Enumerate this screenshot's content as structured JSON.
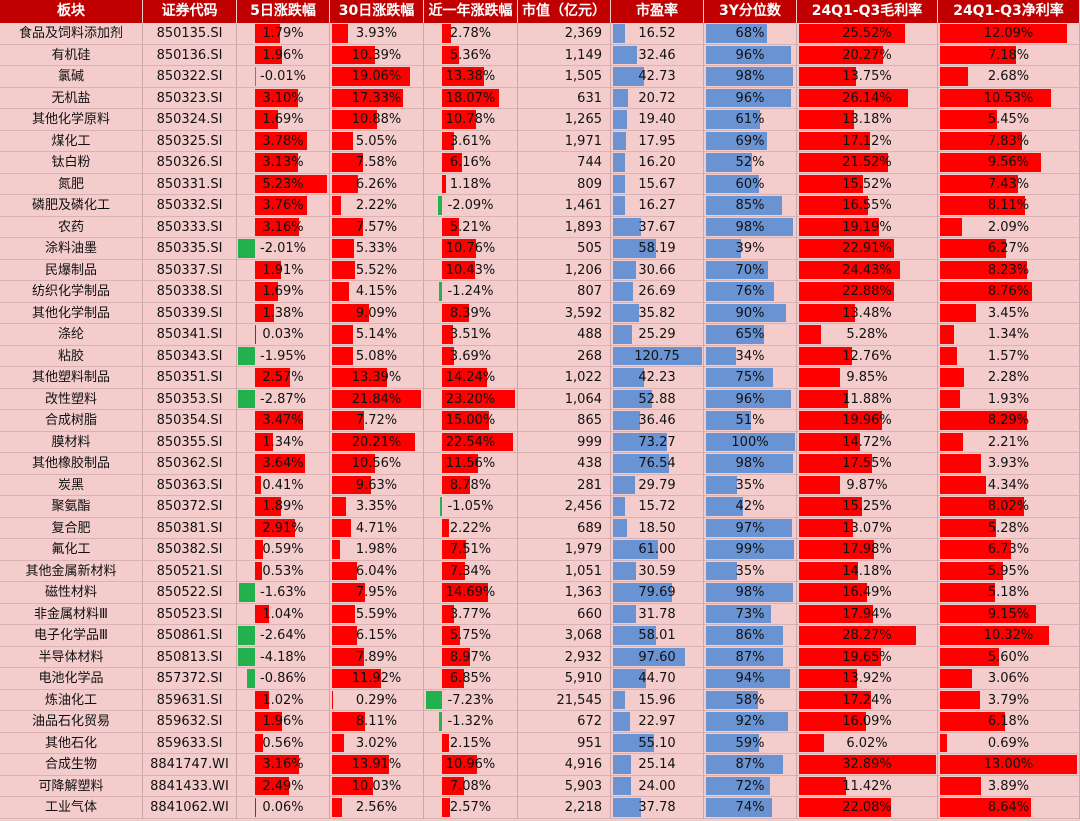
{
  "headers": [
    "板块",
    "证券代码",
    "5日涨跌幅",
    "30日涨跌幅",
    "近一年涨跌幅",
    "市值（亿元）",
    "市盈率",
    "3Y分位数",
    "24Q1-Q3毛利率",
    "24Q1-Q3净利率"
  ],
  "rows": [
    [
      "食品及饲料添加剂",
      "850135.SI",
      "1.79%",
      "3.93%",
      "2.78%",
      "2,369",
      "16.52",
      "68%",
      "25.52%",
      "12.09%"
    ],
    [
      "有机硅",
      "850136.SI",
      "1.96%",
      "10.39%",
      "5.36%",
      "1,149",
      "32.46",
      "96%",
      "20.27%",
      "7.18%"
    ],
    [
      "氯碱",
      "850322.SI",
      "-0.01%",
      "19.06%",
      "13.38%",
      "1,505",
      "42.73",
      "98%",
      "13.75%",
      "2.68%"
    ],
    [
      "无机盐",
      "850323.SI",
      "3.10%",
      "17.33%",
      "18.07%",
      "631",
      "20.72",
      "96%",
      "26.14%",
      "10.53%"
    ],
    [
      "其他化学原料",
      "850324.SI",
      "1.69%",
      "10.88%",
      "10.78%",
      "1,265",
      "19.40",
      "61%",
      "13.18%",
      "5.45%"
    ],
    [
      "煤化工",
      "850325.SI",
      "3.78%",
      "5.05%",
      "3.61%",
      "1,971",
      "17.95",
      "69%",
      "17.12%",
      "7.83%"
    ],
    [
      "钛白粉",
      "850326.SI",
      "3.13%",
      "7.58%",
      "6.16%",
      "744",
      "16.20",
      "52%",
      "21.52%",
      "9.56%"
    ],
    [
      "氮肥",
      "850331.SI",
      "5.23%",
      "6.26%",
      "1.18%",
      "809",
      "15.67",
      "60%",
      "15.52%",
      "7.43%"
    ],
    [
      "磷肥及磷化工",
      "850332.SI",
      "3.76%",
      "2.22%",
      "-2.09%",
      "1,461",
      "16.27",
      "85%",
      "16.55%",
      "8.11%"
    ],
    [
      "农药",
      "850333.SI",
      "3.16%",
      "7.57%",
      "5.21%",
      "1,893",
      "37.67",
      "98%",
      "19.19%",
      "2.09%"
    ],
    [
      "涂料油墨",
      "850335.SI",
      "-2.01%",
      "5.33%",
      "10.76%",
      "505",
      "58.19",
      "39%",
      "22.91%",
      "6.27%"
    ],
    [
      "民爆制品",
      "850337.SI",
      "1.91%",
      "5.52%",
      "10.43%",
      "1,206",
      "30.66",
      "70%",
      "24.43%",
      "8.23%"
    ],
    [
      "纺织化学制品",
      "850338.SI",
      "1.69%",
      "4.15%",
      "-1.24%",
      "807",
      "26.69",
      "76%",
      "22.88%",
      "8.76%"
    ],
    [
      "其他化学制品",
      "850339.SI",
      "1.38%",
      "9.09%",
      "8.39%",
      "3,592",
      "35.82",
      "90%",
      "13.48%",
      "3.45%"
    ],
    [
      "涤纶",
      "850341.SI",
      "0.03%",
      "5.14%",
      "3.51%",
      "488",
      "25.29",
      "65%",
      "5.28%",
      "1.34%"
    ],
    [
      "粘胶",
      "850343.SI",
      "-1.95%",
      "5.08%",
      "3.69%",
      "268",
      "120.75",
      "34%",
      "12.76%",
      "1.57%"
    ],
    [
      "其他塑料制品",
      "850351.SI",
      "2.57%",
      "13.39%",
      "14.24%",
      "1,022",
      "42.23",
      "75%",
      "9.85%",
      "2.28%"
    ],
    [
      "改性塑料",
      "850353.SI",
      "-2.87%",
      "21.84%",
      "23.20%",
      "1,064",
      "52.88",
      "96%",
      "11.88%",
      "1.93%"
    ],
    [
      "合成树脂",
      "850354.SI",
      "3.47%",
      "7.72%",
      "15.00%",
      "865",
      "36.46",
      "51%",
      "19.96%",
      "8.29%"
    ],
    [
      "膜材料",
      "850355.SI",
      "1.34%",
      "20.21%",
      "22.54%",
      "999",
      "73.27",
      "100%",
      "14.72%",
      "2.21%"
    ],
    [
      "其他橡胶制品",
      "850362.SI",
      "3.64%",
      "10.56%",
      "11.56%",
      "438",
      "76.54",
      "98%",
      "17.55%",
      "3.93%"
    ],
    [
      "炭黑",
      "850363.SI",
      "0.41%",
      "9.63%",
      "8.78%",
      "281",
      "29.79",
      "35%",
      "9.87%",
      "4.34%"
    ],
    [
      "聚氨酯",
      "850372.SI",
      "1.89%",
      "3.35%",
      "-1.05%",
      "2,456",
      "15.72",
      "42%",
      "15.25%",
      "8.02%"
    ],
    [
      "复合肥",
      "850381.SI",
      "2.91%",
      "4.71%",
      "2.22%",
      "689",
      "18.50",
      "97%",
      "13.07%",
      "5.28%"
    ],
    [
      "氟化工",
      "850382.SI",
      "0.59%",
      "1.98%",
      "7.51%",
      "1,979",
      "61.00",
      "99%",
      "17.98%",
      "6.73%"
    ],
    [
      "其他金属新材料",
      "850521.SI",
      "0.53%",
      "6.04%",
      "7.34%",
      "1,051",
      "30.59",
      "35%",
      "14.18%",
      "5.95%"
    ],
    [
      "磁性材料",
      "850522.SI",
      "-1.63%",
      "7.95%",
      "14.69%",
      "1,363",
      "79.69",
      "98%",
      "16.49%",
      "5.18%"
    ],
    [
      "非金属材料Ⅲ",
      "850523.SI",
      "1.04%",
      "5.59%",
      "3.77%",
      "660",
      "31.78",
      "73%",
      "17.94%",
      "9.15%"
    ],
    [
      "电子化学品Ⅲ",
      "850861.SI",
      "-2.64%",
      "6.15%",
      "5.75%",
      "3,068",
      "58.01",
      "86%",
      "28.27%",
      "10.32%"
    ],
    [
      "半导体材料",
      "850813.SI",
      "-4.18%",
      "7.89%",
      "8.97%",
      "2,932",
      "97.60",
      "87%",
      "19.65%",
      "5.60%"
    ],
    [
      "电池化学品",
      "857372.SI",
      "-0.86%",
      "11.92%",
      "6.85%",
      "5,910",
      "44.70",
      "94%",
      "13.92%",
      "3.06%"
    ],
    [
      "炼油化工",
      "859631.SI",
      "1.02%",
      "0.29%",
      "-7.23%",
      "21,545",
      "15.96",
      "58%",
      "17.24%",
      "3.79%"
    ],
    [
      "油品石化贸易",
      "859632.SI",
      "1.96%",
      "8.11%",
      "-1.32%",
      "672",
      "22.97",
      "92%",
      "16.09%",
      "6.18%"
    ],
    [
      "其他石化",
      "859633.SI",
      "0.56%",
      "3.02%",
      "2.15%",
      "951",
      "55.10",
      "59%",
      "6.02%",
      "0.69%"
    ],
    [
      "合成生物",
      "8841747.WI",
      "3.16%",
      "13.91%",
      "10.96%",
      "4,916",
      "25.14",
      "87%",
      "32.89%",
      "13.00%"
    ],
    [
      "可降解塑料",
      "8841433.WI",
      "2.49%",
      "10.03%",
      "7.08%",
      "5,903",
      "24.00",
      "72%",
      "11.42%",
      "3.89%"
    ],
    [
      "工业气体",
      "8841062.WI",
      "0.06%",
      "2.56%",
      "2.57%",
      "2,218",
      "37.78",
      "74%",
      "22.08%",
      "8.64%"
    ]
  ],
  "colors": {
    "header_bg": "#c00000",
    "cell_bg": "#f4cccc",
    "pos_bar": "#ff0000",
    "neg_bar": "#22b14c",
    "blue_bar": "#6a93d4"
  }
}
